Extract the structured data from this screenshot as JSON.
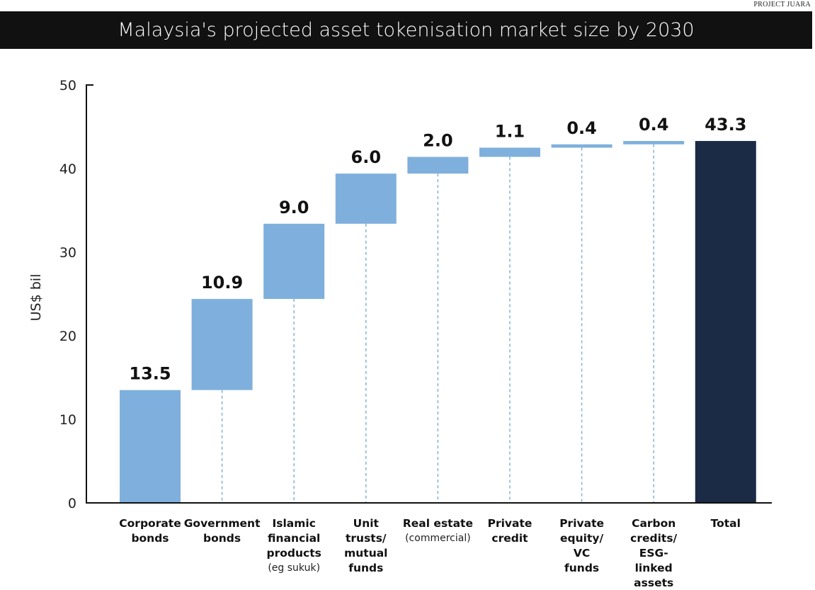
{
  "source": "PROJECT JUARA",
  "colors": {
    "increment": "#7fb0dd",
    "total": "#1b2a45",
    "axis": "#111111",
    "title_bg": "#111111"
  },
  "chart_data": {
    "type": "waterfall",
    "title": "Malaysia's projected asset tokenisation market size by 2030",
    "ylabel": "US$ bil",
    "ylim": [
      0,
      50
    ],
    "yticks": [
      "0",
      "10",
      "20",
      "30",
      "40",
      "50"
    ],
    "categories": [
      {
        "lines": [
          "Corporate",
          "bonds"
        ]
      },
      {
        "lines": [
          "Government",
          "bonds"
        ]
      },
      {
        "lines": [
          "Islamic",
          "financial",
          "products"
        ],
        "note": "(eg sukuk)"
      },
      {
        "lines": [
          "Unit",
          "trusts/",
          "mutual",
          "funds"
        ]
      },
      {
        "lines": [
          "Real estate"
        ],
        "note": "(commercial)"
      },
      {
        "lines": [
          "Private",
          "credit"
        ]
      },
      {
        "lines": [
          "Private",
          "equity/",
          "VC",
          "funds"
        ]
      },
      {
        "lines": [
          "Carbon",
          "credits/",
          "ESG-",
          "linked",
          "assets"
        ]
      },
      {
        "lines": [
          "Total"
        ]
      }
    ],
    "values": [
      13.5,
      10.9,
      9.0,
      6.0,
      2.0,
      1.1,
      0.4,
      0.4,
      43.3
    ],
    "value_labels": [
      "13.5",
      "10.9",
      "9.0",
      "6.0",
      "2.0",
      "1.1",
      "0.4",
      "0.4",
      "43.3"
    ],
    "total_index": 8
  }
}
